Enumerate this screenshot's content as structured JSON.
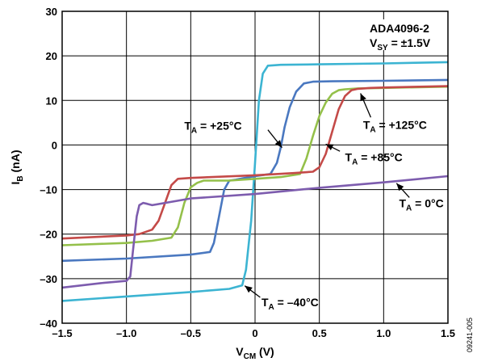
{
  "chart_data": {
    "type": "line",
    "title": "",
    "xlabel": {
      "main": "V",
      "sub": "CM",
      "unit": " (V)"
    },
    "ylabel": {
      "main": "I",
      "sub": "B",
      "unit": " (nA)"
    },
    "xlim": [
      -1.5,
      1.5
    ],
    "ylim": [
      -40,
      30
    ],
    "x_ticks": [
      -1.5,
      -1.0,
      -0.5,
      0,
      0.5,
      1.0,
      1.5
    ],
    "x_tick_labels": [
      "–1.5",
      "–1.0",
      "–0.5",
      "0",
      "0.5",
      "1.0",
      "1.5"
    ],
    "y_ticks": [
      -40,
      -30,
      -20,
      -10,
      0,
      10,
      20,
      30
    ],
    "y_tick_labels": [
      "–40",
      "–30",
      "–20",
      "–10",
      "0",
      "10",
      "20",
      "30"
    ],
    "grid": true,
    "legend_box": {
      "line1": "ADA4096-2",
      "line2_main": "V",
      "line2_sub": "SY",
      "line2_rest": " = ±1.5V"
    },
    "side_label": "09241-005",
    "series": [
      {
        "name": "T_A = -40°C",
        "color": "#3cb4d2",
        "label_main": "T",
        "label_sub": "A",
        "label_rest": " = –40°C",
        "x": [
          -1.5,
          -1.0,
          -0.5,
          -0.2,
          -0.1,
          -0.07,
          -0.03,
          0.0,
          0.03,
          0.06,
          0.1,
          0.2,
          0.5,
          1.0,
          1.5
        ],
        "y": [
          -35,
          -34,
          -33,
          -32.3,
          -31.5,
          -28,
          -17,
          -4,
          10,
          16,
          17.8,
          18,
          18.1,
          18.3,
          18.6
        ]
      },
      {
        "name": "T_A = +25°C",
        "color": "#4a78c0",
        "label_main": "T",
        "label_sub": "A",
        "label_rest": " = +25°C",
        "x": [
          -1.5,
          -1.0,
          -0.5,
          -0.35,
          -0.32,
          -0.28,
          -0.24,
          -0.2,
          -0.15,
          -0.1,
          0.0,
          0.12,
          0.17,
          0.2,
          0.23,
          0.27,
          0.32,
          0.38,
          0.45,
          0.6,
          1.0,
          1.5
        ],
        "y": [
          -26,
          -25.5,
          -24.6,
          -24,
          -22,
          -16,
          -10,
          -8,
          -7.8,
          -7.5,
          -7,
          -6.5,
          -4,
          -0.5,
          4,
          8.5,
          12,
          13.8,
          14.2,
          14.3,
          14.4,
          14.6
        ]
      },
      {
        "name": "T_A = +85°C",
        "color": "#94c04a",
        "label_main": "T",
        "label_sub": "A",
        "label_rest": " = +85°C",
        "x": [
          -1.5,
          -1.0,
          -0.8,
          -0.65,
          -0.6,
          -0.55,
          -0.5,
          -0.45,
          -0.4,
          -0.2,
          0.0,
          0.2,
          0.35,
          0.4,
          0.45,
          0.5,
          0.55,
          0.6,
          0.65,
          0.7,
          0.8,
          1.0,
          1.5
        ],
        "y": [
          -22.5,
          -22,
          -21.5,
          -20.8,
          -18.5,
          -13,
          -9.5,
          -8.5,
          -8,
          -8,
          -7.6,
          -7.2,
          -6.5,
          -3,
          2,
          6.5,
          9.5,
          11.5,
          12.3,
          12.5,
          12.7,
          12.8,
          13.1
        ]
      },
      {
        "name": "T_A = +125°C",
        "color": "#c44a48",
        "label_main": "T",
        "label_sub": "A",
        "label_rest": " = +125°C",
        "x": [
          -1.5,
          -1.0,
          -0.9,
          -0.8,
          -0.75,
          -0.7,
          -0.65,
          -0.6,
          -0.5,
          0.0,
          0.3,
          0.45,
          0.5,
          0.55,
          0.6,
          0.65,
          0.7,
          0.75,
          0.8,
          0.9,
          1.0,
          1.5
        ],
        "y": [
          -21,
          -20.3,
          -20,
          -19,
          -17,
          -13,
          -9,
          -7.6,
          -7.4,
          -6.8,
          -6.3,
          -6,
          -5,
          -2,
          3,
          8,
          11,
          12.3,
          12.6,
          12.8,
          12.9,
          13.2
        ]
      },
      {
        "name": "T_A = 0°C",
        "color": "#7d5cae",
        "label_main": "T",
        "label_sub": "A",
        "label_rest": " = 0°C",
        "x": [
          -1.5,
          -1.2,
          -1.0,
          -0.97,
          -0.95,
          -0.92,
          -0.9,
          -0.87,
          -0.84,
          -0.8,
          -0.5,
          0.0,
          0.5,
          1.0,
          1.5
        ],
        "y": [
          -32,
          -31,
          -30.5,
          -29.5,
          -24,
          -16,
          -13.5,
          -13,
          -13.2,
          -13.5,
          -12,
          -11,
          -9.6,
          -8.4,
          -7
        ]
      }
    ],
    "annotations": [
      {
        "series": 0,
        "text_x": 0.05,
        "text_y": -36.2,
        "arrow_from": [
          0.04,
          -34.2
        ],
        "arrow_to": [
          -0.08,
          -31.6
        ]
      },
      {
        "series": 1,
        "text_x": -0.55,
        "text_y": 3.4,
        "arrow_from": [
          0.1,
          3.4
        ],
        "arrow_to": [
          0.21,
          -0.6
        ]
      },
      {
        "series": 2,
        "text_x": 0.7,
        "text_y": -3.6,
        "arrow_from": [
          0.66,
          -1.4
        ],
        "arrow_to": [
          0.55,
          0.2
        ]
      },
      {
        "series": 3,
        "text_x": 0.84,
        "text_y": 3.6,
        "arrow_from": [
          0.9,
          6.2
        ],
        "arrow_to": [
          0.82,
          11.6
        ]
      },
      {
        "series": 4,
        "text_x": 1.12,
        "text_y": -14.0,
        "arrow_from": [
          1.2,
          -11.8
        ],
        "arrow_to": [
          1.1,
          -8.6
        ]
      }
    ]
  }
}
